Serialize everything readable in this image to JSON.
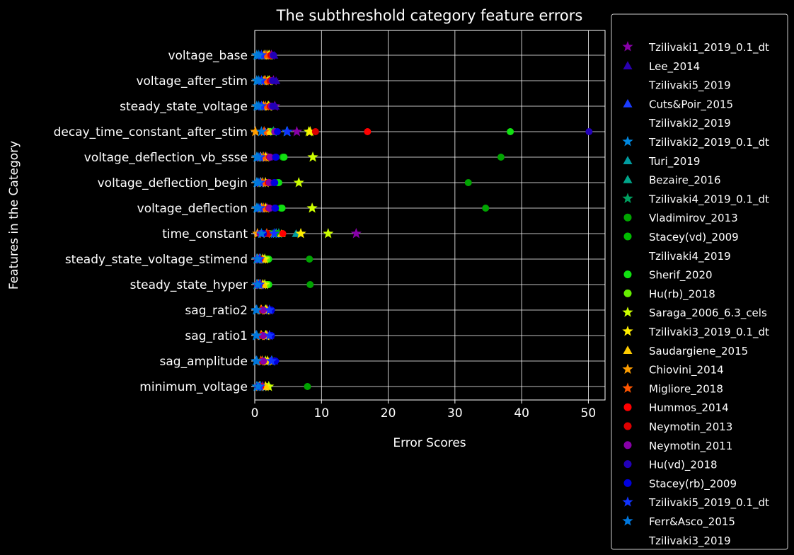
{
  "chart_data": {
    "type": "scatter",
    "orientation": "horizontal",
    "title": "The subthreshold category feature errors",
    "xlabel": "Error Scores",
    "ylabel": "Features in the Category",
    "xlim": [
      0,
      52.5
    ],
    "xticks": [
      0,
      10,
      20,
      30,
      40,
      50
    ],
    "grid": true,
    "legend_position": "outside-right",
    "categories": [
      "voltage_base",
      "voltage_after_stim",
      "steady_state_voltage",
      "decay_time_constant_after_stim",
      "voltage_deflection_vb_ssse",
      "voltage_deflection_begin",
      "voltage_deflection",
      "time_constant",
      "steady_state_voltage_stimend",
      "steady_state_hyper",
      "sag_ratio2",
      "sag_ratio1",
      "sag_amplitude",
      "minimum_voltage"
    ],
    "series": [
      {
        "name": "Tzilivaki1_2019_0.1_dt",
        "marker": "star",
        "color": "#8800a8",
        "values": [
          2.5,
          2.8,
          3.0,
          6.3,
          1.8,
          1.6,
          1.8,
          15.2,
          0.8,
          0.9,
          1.9,
          1.9,
          2.5,
          1.2
        ]
      },
      {
        "name": "Lee_2014",
        "marker": "triangle",
        "color": "#2a00b0",
        "values": [
          2.9,
          3.2,
          3.1,
          3.0,
          2.1,
          2.1,
          2.0,
          3.0,
          0.9,
          0.9,
          2.3,
          2.3,
          2.9,
          0.9
        ]
      },
      {
        "name": "Tzilivaki5_2019",
        "marker": "none",
        "color": "#000000",
        "values": []
      },
      {
        "name": "Cuts&Poir_2015",
        "marker": "triangle",
        "color": "#1a3cff",
        "values": [
          1.5,
          1.4,
          1.4,
          1.6,
          1.0,
          1.0,
          1.2,
          1.7,
          0.8,
          0.7,
          1.5,
          1.5,
          2.3,
          0.8
        ]
      },
      {
        "name": "Tzilivaki2_2019",
        "marker": "none",
        "color": "#000000",
        "values": []
      },
      {
        "name": "Tzilivaki2_2019_0.1_dt",
        "marker": "star",
        "color": "#0088e0",
        "values": [
          0.3,
          0.3,
          0.3,
          4.8,
          0.3,
          0.3,
          0.3,
          3.2,
          0.3,
          0.3,
          0.2,
          0.2,
          0.2,
          0.3
        ]
      },
      {
        "name": "Turi_2019",
        "marker": "triangle",
        "color": "#009ca0",
        "values": [
          0.9,
          1.0,
          0.9,
          2.6,
          0.7,
          0.7,
          0.8,
          6.2,
          0.5,
          0.5,
          0.9,
          0.9,
          0.9,
          0.6
        ]
      },
      {
        "name": "Bezaire_2016",
        "marker": "triangle",
        "color": "#00a68a",
        "values": [
          1.3,
          1.2,
          1.2,
          2.3,
          0.9,
          0.9,
          1.0,
          2.6,
          0.6,
          0.6,
          1.2,
          1.2,
          1.2,
          0.7
        ]
      },
      {
        "name": "Tzilivaki4_2019_0.1_dt",
        "marker": "star",
        "color": "#00a060",
        "values": [
          1.6,
          1.6,
          1.6,
          2.8,
          1.2,
          1.1,
          1.1,
          3.6,
          0.9,
          0.8,
          1.7,
          1.7,
          2.6,
          0.9
        ]
      },
      {
        "name": "Vladimirov_2013",
        "marker": "circle",
        "color": "#00a400",
        "values": [
          1.3,
          1.2,
          1.2,
          3.0,
          36.9,
          32.0,
          34.6,
          3.5,
          8.2,
          8.3,
          1.0,
          1.0,
          1.0,
          7.9
        ]
      },
      {
        "name": "Stacey(vd)_2009",
        "marker": "circle",
        "color": "#00bb00",
        "values": [
          1.8,
          1.8,
          1.7,
          2.4,
          4.2,
          3.4,
          3.9,
          3.4,
          2.0,
          2.0,
          1.4,
          1.4,
          1.4,
          1.9
        ]
      },
      {
        "name": "Tzilivaki4_2019",
        "marker": "none",
        "color": "#000000",
        "values": []
      },
      {
        "name": "Sherif_2020",
        "marker": "circle",
        "color": "#11e011",
        "values": [
          1.9,
          1.9,
          1.8,
          38.3,
          4.4,
          3.6,
          4.1,
          2.2,
          2.1,
          2.1,
          1.5,
          1.5,
          1.5,
          2.0
        ]
      },
      {
        "name": "Hu(rb)_2018",
        "marker": "circle",
        "color": "#66ee00",
        "values": [
          2.0,
          2.0,
          1.9,
          2.2,
          2.0,
          1.8,
          1.9,
          2.1,
          1.8,
          1.8,
          1.7,
          1.7,
          1.7,
          1.9
        ]
      },
      {
        "name": "Saraga_2006_6.3_cels",
        "marker": "star",
        "color": "#ccff00",
        "values": [
          2.2,
          2.2,
          2.1,
          8.1,
          8.7,
          6.6,
          8.6,
          11.0,
          1.5,
          1.5,
          1.6,
          1.6,
          1.6,
          2.1
        ]
      },
      {
        "name": "Tzilivaki3_2019_0.1_dt",
        "marker": "star",
        "color": "#ffee00",
        "values": [
          2.0,
          2.0,
          2.0,
          8.3,
          1.6,
          1.6,
          1.6,
          6.9,
          1.2,
          1.2,
          1.7,
          1.7,
          1.9,
          1.6
        ]
      },
      {
        "name": "Saudargiene_2015",
        "marker": "triangle",
        "color": "#ffcc00",
        "values": [
          2.2,
          2.2,
          2.2,
          2.0,
          1.7,
          1.6,
          1.7,
          4.0,
          1.3,
          1.3,
          1.8,
          1.8,
          2.0,
          1.7
        ]
      },
      {
        "name": "Chiovini_2014",
        "marker": "star",
        "color": "#ff9e00",
        "values": [
          1.4,
          1.4,
          1.3,
          0.1,
          0.9,
          0.9,
          1.0,
          0.4,
          0.5,
          0.5,
          1.0,
          1.0,
          1.1,
          0.7
        ]
      },
      {
        "name": "Migliore_2018",
        "marker": "star",
        "color": "#ff5500",
        "values": [
          1.7,
          1.6,
          1.6,
          1.4,
          1.3,
          1.2,
          1.3,
          1.8,
          0.7,
          0.6,
          0.9,
          0.9,
          0.9,
          0.8
        ]
      },
      {
        "name": "Hummos_2014",
        "marker": "circle",
        "color": "#ff0000",
        "values": [
          2.4,
          2.3,
          2.3,
          16.9,
          2.2,
          2.0,
          2.1,
          4.2,
          0.8,
          0.7,
          1.2,
          1.2,
          1.2,
          0.9
        ]
      },
      {
        "name": "Neymotin_2013",
        "marker": "circle",
        "color": "#dd0000",
        "values": [
          2.5,
          2.4,
          2.4,
          9.1,
          2.2,
          2.1,
          2.1,
          2.0,
          0.4,
          0.4,
          1.1,
          1.1,
          1.1,
          0.5
        ]
      },
      {
        "name": "Neymotin_2011",
        "marker": "circle",
        "color": "#8800a8",
        "values": [
          2.7,
          2.6,
          2.5,
          3.0,
          2.3,
          2.2,
          2.2,
          0.8,
          0.4,
          0.4,
          1.3,
          1.3,
          1.3,
          0.5
        ]
      },
      {
        "name": "Hu(vd)_2018",
        "marker": "circle",
        "color": "#2200b8",
        "values": [
          2.8,
          2.7,
          2.7,
          50.1,
          3.1,
          2.9,
          3.0,
          1.3,
          0.6,
          0.6,
          2.4,
          2.4,
          2.9,
          0.6
        ]
      },
      {
        "name": "Stacey(rb)_2009",
        "marker": "circle",
        "color": "#0000dd",
        "values": [
          0.9,
          0.9,
          0.9,
          3.4,
          3.2,
          3.0,
          3.1,
          1.2,
          0.5,
          0.5,
          2.5,
          2.5,
          3.1,
          0.6
        ]
      },
      {
        "name": "Tzilivaki5_2019_0.1_dt",
        "marker": "star",
        "color": "#1133ff",
        "values": [
          1.0,
          1.0,
          1.0,
          4.9,
          0.8,
          0.8,
          0.8,
          2.9,
          0.7,
          0.7,
          2.2,
          2.2,
          2.5,
          0.8
        ]
      },
      {
        "name": "Ferr&Asco_2015",
        "marker": "star",
        "color": "#0077dd",
        "values": [
          0.6,
          0.6,
          0.6,
          1.0,
          0.5,
          0.5,
          0.5,
          1.0,
          0.4,
          0.4,
          0.3,
          0.3,
          0.3,
          0.5
        ]
      },
      {
        "name": "Tzilivaki3_2019",
        "marker": "none",
        "color": "#000000",
        "values": []
      }
    ]
  }
}
